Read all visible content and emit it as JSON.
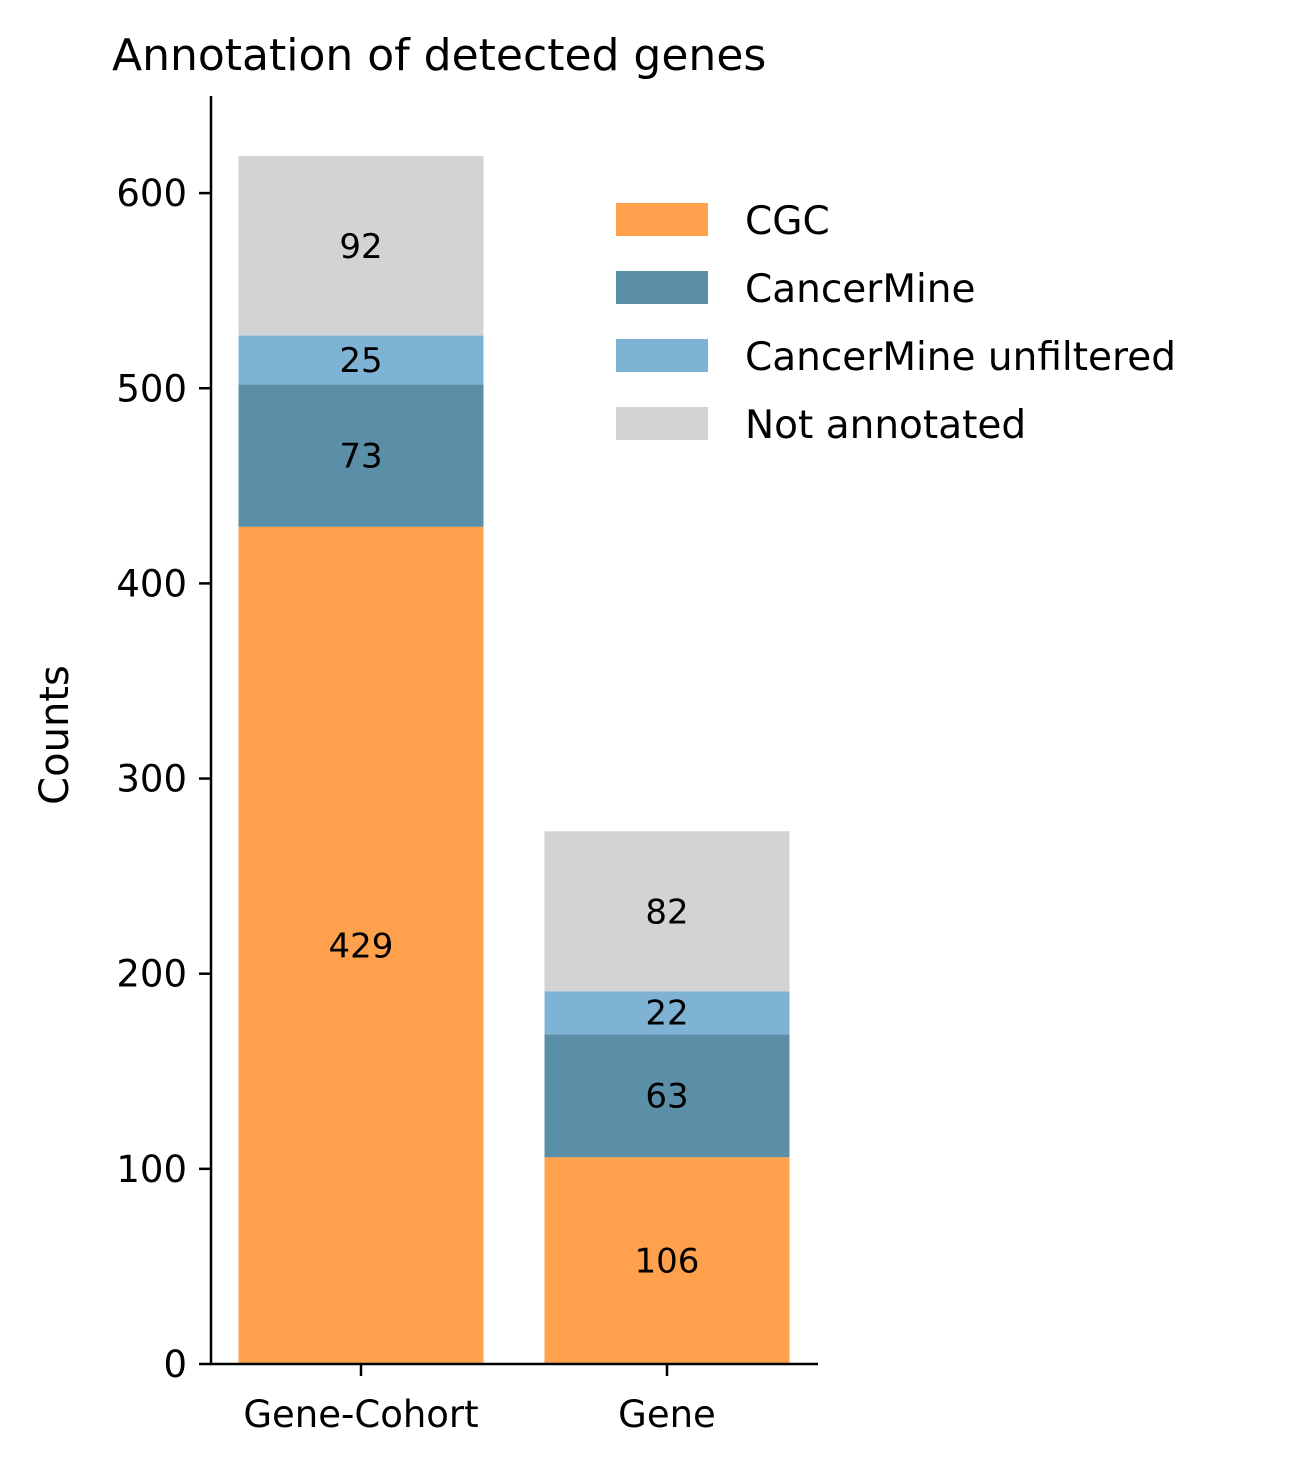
{
  "chart_data": {
    "type": "bar",
    "stacked": true,
    "title": "Annotation of detected genes",
    "xlabel": "",
    "ylabel": "Counts",
    "ylim": [
      0,
      650
    ],
    "yticks": [
      0,
      100,
      200,
      300,
      400,
      500,
      600
    ],
    "categories": [
      "Gene-Cohort",
      "Gene"
    ],
    "series": [
      {
        "name": "CGC",
        "values": [
          429,
          106
        ],
        "color": "#ffa04c"
      },
      {
        "name": "CancerMine",
        "values": [
          73,
          63
        ],
        "color": "#5b8fa8"
      },
      {
        "name": "CancerMine unfiltered",
        "values": [
          25,
          22
        ],
        "color": "#7fb3d5"
      },
      {
        "name": "Not annotated",
        "values": [
          92,
          82
        ],
        "color": "#d3d3d3"
      }
    ],
    "legend": {
      "position": "top-right"
    },
    "grid": false
  }
}
